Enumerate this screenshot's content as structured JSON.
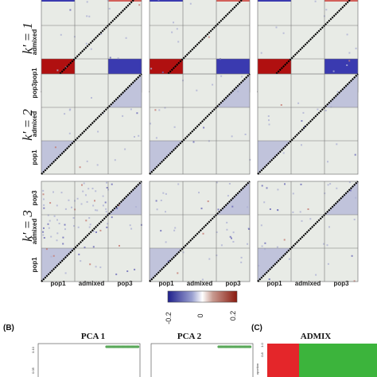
{
  "row_labels": [
    "k' = 1",
    "k' = 2",
    "k' = 3"
  ],
  "population_labels": [
    "pop1",
    "admixed",
    "pop3"
  ],
  "legend": {
    "ticks": [
      "-0.2",
      "0",
      "0.2"
    ],
    "colors": {
      "low": "#1f1f8c",
      "mid": "#ffffff",
      "high": "#8b1a0f"
    }
  },
  "panel_b": {
    "letter": "(B)",
    "plots": [
      {
        "title": "PCA 1",
        "y_ticks": [
          "0.10",
          "0.05"
        ]
      },
      {
        "title": "PCA 2",
        "y_ticks": []
      }
    ]
  },
  "panel_c": {
    "letter": "(C)",
    "title": "ADMIX",
    "y_ticks": [
      "1.0",
      "0.8"
    ],
    "y_label": "oportion",
    "colors": {
      "left": "#e4262a",
      "right": "#3cb43c"
    }
  },
  "colors": {
    "panel_bg": "#e8ebe6",
    "red_block": "#b01010",
    "blue_block": "#3a3ab0",
    "lavender": "#b9bcd8",
    "diagonal": "#000000",
    "frame": "#777777",
    "pca_points": "#5aa85a"
  }
}
